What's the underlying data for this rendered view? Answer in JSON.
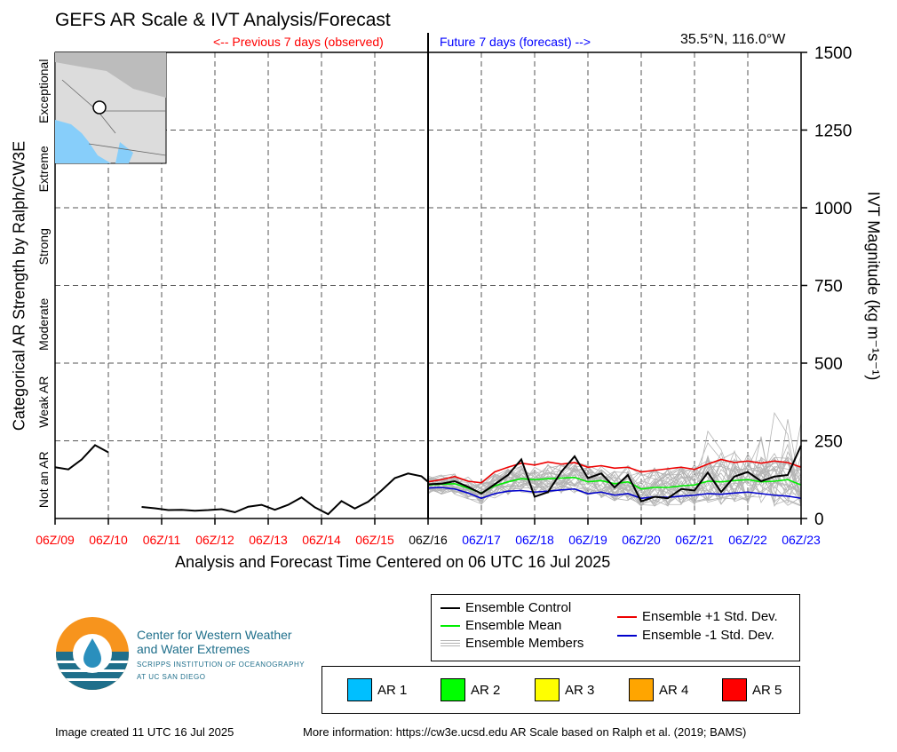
{
  "header": {
    "title": "GEFS AR Scale & IVT Analysis/Forecast",
    "prev_label": "<-- Previous 7 days (observed)",
    "future_label": "Future 7 days (forecast) -->",
    "location": "35.5°N, 116.0°W"
  },
  "axes": {
    "left_label": "Categorical AR Strength by Ralph/CW3E",
    "right_label": "IVT Magnitude (kg m⁻¹s⁻¹)",
    "x_label": "Analysis and Forecast Time Centered on 06 UTC 16 Jul 2025"
  },
  "colors": {
    "observed": "#ff0000",
    "forecast": "#0000ff",
    "now": "#000000",
    "control": "#000000",
    "mean": "#00ee00",
    "plus_sd": "#ee0000",
    "minus_sd": "#0000cc",
    "members": "#b4b4b4"
  },
  "chart_data": {
    "type": "line",
    "title": "GEFS AR Scale & IVT Analysis/Forecast",
    "xlabel": "Analysis and Forecast Time Centered on 06 UTC 16 Jul 2025",
    "ylabel": "IVT Magnitude (kg m⁻¹s⁻¹)",
    "ylim": [
      0,
      1500
    ],
    "y_ticks": [
      0,
      250,
      500,
      750,
      1000,
      1250,
      1500
    ],
    "grid": true,
    "x_ticks": [
      {
        "label": "06Z/09",
        "day": 0,
        "kind": "observed"
      },
      {
        "label": "06Z/10",
        "day": 1,
        "kind": "observed"
      },
      {
        "label": "06Z/11",
        "day": 2,
        "kind": "observed"
      },
      {
        "label": "06Z/12",
        "day": 3,
        "kind": "observed"
      },
      {
        "label": "06Z/13",
        "day": 4,
        "kind": "observed"
      },
      {
        "label": "06Z/14",
        "day": 5,
        "kind": "observed"
      },
      {
        "label": "06Z/15",
        "day": 6,
        "kind": "observed"
      },
      {
        "label": "06Z/16",
        "day": 7,
        "kind": "now"
      },
      {
        "label": "06Z/17",
        "day": 8,
        "kind": "forecast"
      },
      {
        "label": "06Z/18",
        "day": 9,
        "kind": "forecast"
      },
      {
        "label": "06Z/19",
        "day": 10,
        "kind": "forecast"
      },
      {
        "label": "06Z/20",
        "day": 11,
        "kind": "forecast"
      },
      {
        "label": "06Z/21",
        "day": 12,
        "kind": "forecast"
      },
      {
        "label": "06Z/22",
        "day": 13,
        "kind": "forecast"
      },
      {
        "label": "06Z/23",
        "day": 14,
        "kind": "forecast"
      }
    ],
    "categories": [
      {
        "label": "Not an AR",
        "from": 0,
        "to": 250
      },
      {
        "label": "Weak AR",
        "from": 250,
        "to": 500
      },
      {
        "label": "Moderate",
        "from": 500,
        "to": 750
      },
      {
        "label": "Strong",
        "from": 750,
        "to": 1000
      },
      {
        "label": "Extreme",
        "from": 1000,
        "to": 1250
      },
      {
        "label": "Exceptional",
        "from": 1250,
        "to": 1500
      }
    ],
    "observed_segments": [
      {
        "x": [
          0,
          0.25,
          0.5,
          0.75,
          1.0
        ],
        "y": [
          165,
          158,
          190,
          236,
          213
        ]
      },
      {
        "x": [
          1.625,
          1.875,
          2.125,
          2.375,
          2.625,
          2.875,
          3.125,
          3.375,
          3.625,
          3.875,
          4.125,
          4.375,
          4.625,
          4.875,
          5.125,
          5.375,
          5.625,
          5.875,
          6.125,
          6.375,
          6.625,
          6.875,
          7.0
        ],
        "y": [
          37,
          33,
          27,
          28,
          25,
          27,
          30,
          20,
          38,
          44,
          28,
          44,
          68,
          36,
          14,
          56,
          32,
          54,
          90,
          130,
          145,
          136,
          118
        ]
      }
    ],
    "series": [
      {
        "name": "Ensemble Control",
        "x": [
          7.0,
          7.25,
          7.5,
          7.75,
          8.0,
          8.25,
          8.5,
          8.75,
          9.0,
          9.25,
          9.5,
          9.75,
          10.0,
          10.25,
          10.5,
          10.75,
          11.0,
          11.25,
          11.5,
          11.75,
          12.0,
          12.25,
          12.5,
          12.75,
          13.0,
          13.25,
          13.5,
          13.75,
          14.0
        ],
        "y": [
          110,
          112,
          120,
          102,
          80,
          110,
          140,
          190,
          70,
          85,
          150,
          200,
          130,
          145,
          100,
          140,
          55,
          70,
          65,
          95,
          90,
          148,
          85,
          135,
          150,
          120,
          135,
          140,
          235
        ]
      },
      {
        "name": "Ensemble Mean",
        "x": [
          7.0,
          7.25,
          7.5,
          7.75,
          8.0,
          8.25,
          8.5,
          8.75,
          9.0,
          9.25,
          9.5,
          9.75,
          10.0,
          10.25,
          10.5,
          10.75,
          11.0,
          11.25,
          11.5,
          11.75,
          12.0,
          12.25,
          12.5,
          12.75,
          13.0,
          13.25,
          13.5,
          13.75,
          14.0
        ],
        "y": [
          108,
          110,
          112,
          98,
          82,
          105,
          118,
          128,
          125,
          128,
          130,
          132,
          118,
          122,
          112,
          118,
          95,
          100,
          100,
          105,
          108,
          120,
          118,
          122,
          125,
          118,
          120,
          125,
          108
        ]
      },
      {
        "name": "Ensemble +1 Std. Dev.",
        "x": [
          7.0,
          7.25,
          7.5,
          7.75,
          8.0,
          8.25,
          8.5,
          8.75,
          9.0,
          9.25,
          9.5,
          9.75,
          10.0,
          10.25,
          10.5,
          10.75,
          11.0,
          11.25,
          11.5,
          11.75,
          12.0,
          12.25,
          12.5,
          12.75,
          13.0,
          13.25,
          13.5,
          13.75,
          14.0
        ],
        "y": [
          118,
          125,
          135,
          120,
          115,
          150,
          165,
          178,
          172,
          182,
          175,
          180,
          165,
          170,
          162,
          165,
          150,
          155,
          160,
          165,
          158,
          175,
          190,
          180,
          185,
          178,
          185,
          180,
          165
        ]
      },
      {
        "name": "Ensemble -1 Std. Dev.",
        "x": [
          7.0,
          7.25,
          7.5,
          7.75,
          8.0,
          8.25,
          8.5,
          8.75,
          9.0,
          9.25,
          9.5,
          9.75,
          10.0,
          10.25,
          10.5,
          10.75,
          11.0,
          11.25,
          11.5,
          11.75,
          12.0,
          12.25,
          12.5,
          12.75,
          13.0,
          13.25,
          13.5,
          13.75,
          14.0
        ],
        "y": [
          98,
          100,
          95,
          82,
          65,
          80,
          88,
          90,
          85,
          88,
          92,
          95,
          80,
          85,
          75,
          80,
          65,
          70,
          68,
          72,
          75,
          80,
          78,
          82,
          85,
          80,
          75,
          72,
          65
        ]
      }
    ],
    "members_spread": {
      "min": 40,
      "max": 355,
      "count": 30
    }
  },
  "legend_lines": [
    {
      "label": "Ensemble Control",
      "color": "#000000"
    },
    {
      "label": "Ensemble Mean",
      "color": "#00ee00"
    },
    {
      "label": "Ensemble Members",
      "color": "#b4b4b4"
    },
    {
      "label": "Ensemble +1 Std. Dev.",
      "color": "#ee0000"
    },
    {
      "label": "Ensemble -1 Std. Dev.",
      "color": "#0000cc"
    }
  ],
  "legend_ar": [
    {
      "label": "AR 1",
      "color": "#00bfff"
    },
    {
      "label": "AR 2",
      "color": "#00ff00"
    },
    {
      "label": "AR 3",
      "color": "#ffff00"
    },
    {
      "label": "AR 4",
      "color": "#ffa500"
    },
    {
      "label": "AR 5",
      "color": "#ff0000"
    }
  ],
  "logo": {
    "name_line1": "Center for Western Weather",
    "name_line2": "and Water Extremes",
    "sub_line1": "SCRIPPS INSTITUTION OF OCEANOGRAPHY",
    "sub_line2": "AT UC SAN DIEGO"
  },
  "footer": {
    "created": "Image created 11 UTC 16 Jul 2025",
    "more_info": "More information: https://cw3e.ucsd.edu AR Scale based on Ralph et al. (2019; BAMS)"
  }
}
